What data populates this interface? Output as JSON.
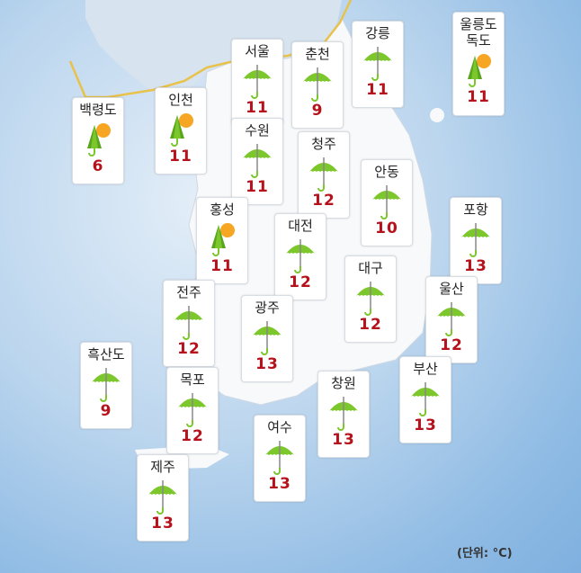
{
  "unit_label": "(단위: °C)",
  "colors": {
    "temp": "#b5121b",
    "umbrella": "#7cc72b",
    "sun": "#f6a623"
  },
  "cities": [
    {
      "name": "백령도",
      "icon": "rain-sun-icon",
      "temp": "6"
    },
    {
      "name": "인천",
      "icon": "rain-sun-icon",
      "temp": "11"
    },
    {
      "name": "서울",
      "icon": "umbrella-icon",
      "temp": "11"
    },
    {
      "name": "춘천",
      "icon": "umbrella-icon",
      "temp": "9"
    },
    {
      "name": "강릉",
      "icon": "umbrella-icon",
      "temp": "11"
    },
    {
      "name": "울릉도\n독도",
      "icon": "rain-sun-icon",
      "temp": "11"
    },
    {
      "name": "수원",
      "icon": "umbrella-icon",
      "temp": "11"
    },
    {
      "name": "청주",
      "icon": "umbrella-icon",
      "temp": "12"
    },
    {
      "name": "안동",
      "icon": "umbrella-icon",
      "temp": "10"
    },
    {
      "name": "홍성",
      "icon": "rain-sun-icon",
      "temp": "11"
    },
    {
      "name": "대전",
      "icon": "umbrella-icon",
      "temp": "12"
    },
    {
      "name": "포항",
      "icon": "umbrella-icon",
      "temp": "13"
    },
    {
      "name": "전주",
      "icon": "umbrella-icon",
      "temp": "12"
    },
    {
      "name": "광주",
      "icon": "umbrella-icon",
      "temp": "13"
    },
    {
      "name": "대구",
      "icon": "umbrella-icon",
      "temp": "12"
    },
    {
      "name": "울산",
      "icon": "umbrella-icon",
      "temp": "12"
    },
    {
      "name": "흑산도",
      "icon": "umbrella-icon",
      "temp": "9"
    },
    {
      "name": "목포",
      "icon": "umbrella-icon",
      "temp": "12"
    },
    {
      "name": "부산",
      "icon": "umbrella-icon",
      "temp": "13"
    },
    {
      "name": "창원",
      "icon": "umbrella-icon",
      "temp": "13"
    },
    {
      "name": "여수",
      "icon": "umbrella-icon",
      "temp": "13"
    },
    {
      "name": "제주",
      "icon": "umbrella-icon",
      "temp": "13"
    }
  ]
}
